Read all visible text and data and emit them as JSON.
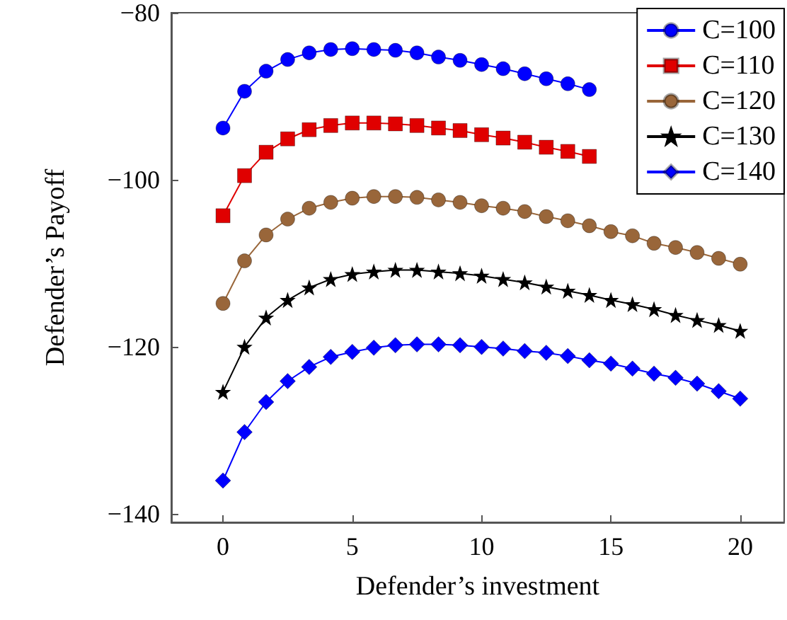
{
  "chart_data": {
    "type": "line",
    "xlabel": "Defender’s investment",
    "ylabel": "Defender’s Payoff",
    "x": [
      0,
      0.833,
      1.667,
      2.5,
      3.333,
      4.167,
      5,
      5.833,
      6.667,
      7.5,
      8.333,
      9.167,
      10,
      10.833,
      11.667,
      12.5,
      13.333,
      14.167,
      15,
      15.833,
      16.667,
      17.5,
      18.333,
      19.167,
      20
    ],
    "series": [
      {
        "name": "C=100",
        "color": "#0000ff",
        "marker": "circle",
        "values": [
          -93.8,
          -89.4,
          -87.0,
          -85.6,
          -84.8,
          -84.4,
          -84.3,
          -84.4,
          -84.5,
          -84.8,
          -85.3,
          -85.7,
          -86.2,
          -86.7,
          -87.3,
          -87.9,
          -88.5,
          -89.2,
          null,
          null,
          null,
          null,
          null,
          null,
          null
        ]
      },
      {
        "name": "C=110",
        "color": "#e00000",
        "marker": "square",
        "values": [
          -104.3,
          -99.5,
          -96.7,
          -95.1,
          -94.0,
          -93.5,
          -93.2,
          -93.2,
          -93.3,
          -93.5,
          -93.8,
          -94.1,
          -94.6,
          -95.0,
          -95.5,
          -96.1,
          -96.6,
          -97.2,
          null,
          null,
          null,
          null,
          null,
          null,
          null
        ]
      },
      {
        "name": "C=120",
        "color": "#99663a",
        "marker": "circle",
        "values": [
          -114.8,
          -109.7,
          -106.6,
          -104.7,
          -103.4,
          -102.7,
          -102.2,
          -102.0,
          -102.0,
          -102.1,
          -102.4,
          -102.7,
          -103.1,
          -103.4,
          -103.8,
          -104.4,
          -104.9,
          -105.5,
          -106.2,
          -106.7,
          -107.6,
          -108.1,
          -108.7,
          -109.4,
          -110.1
        ]
      },
      {
        "name": "C=130",
        "color": "#000000",
        "marker": "star",
        "values": [
          -125.4,
          -120.0,
          -116.5,
          -114.4,
          -112.9,
          -111.9,
          -111.3,
          -111.0,
          -110.8,
          -110.8,
          -111.0,
          -111.2,
          -111.5,
          -111.9,
          -112.3,
          -112.8,
          -113.3,
          -113.8,
          -114.4,
          -114.9,
          -115.5,
          -116.2,
          -116.8,
          -117.4,
          -118.1
        ]
      },
      {
        "name": "C=140",
        "color": "#0000ff",
        "marker": "diamond",
        "values": [
          -136.0,
          -130.2,
          -126.6,
          -124.1,
          -122.4,
          -121.2,
          -120.6,
          -120.1,
          -119.8,
          -119.7,
          -119.7,
          -119.8,
          -120.0,
          -120.2,
          -120.5,
          -120.7,
          -121.1,
          -121.6,
          -122.0,
          -122.6,
          -123.2,
          -123.7,
          -124.4,
          -125.3,
          -126.2
        ]
      }
    ],
    "xlim": [
      -2,
      21.7
    ],
    "xticks": [
      0,
      5,
      10,
      15,
      20
    ],
    "ylim": [
      -141,
      -80
    ],
    "yticks": [
      -140,
      -120,
      -100,
      -80
    ],
    "legend": "top right",
    "grid": false,
    "line_style": "solid"
  }
}
